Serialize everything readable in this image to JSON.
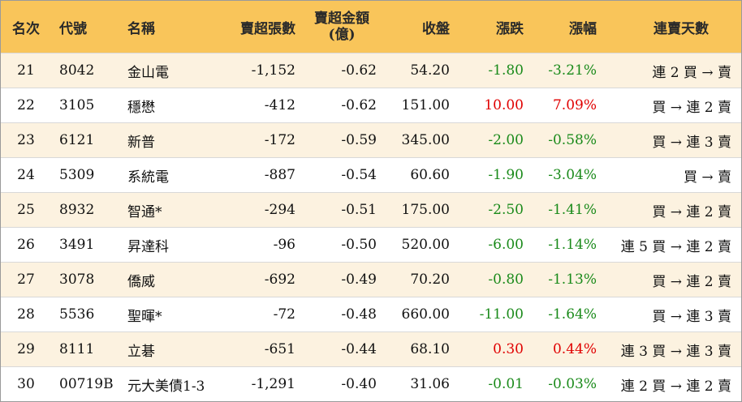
{
  "headers": {
    "rank": "名次",
    "code": "代號",
    "name": "名稱",
    "sell_volume": "賣超張數",
    "sell_amount_line1": "賣超金額",
    "sell_amount_line2": "(億)",
    "close": "收盤",
    "change": "漲跌",
    "pct_change": "漲幅",
    "streak": "連賣天數"
  },
  "colors": {
    "header_bg": "#f9c55a",
    "stripe_bg": "#fcf2e0",
    "up": "#e00000",
    "down": "#1a8a1a"
  },
  "rows": [
    {
      "rank": "21",
      "code": "8042",
      "name": "金山電",
      "vol": "-1,152",
      "amt": "-0.62",
      "close": "54.20",
      "chg": "-1.80",
      "pct": "-3.21%",
      "dir": "down",
      "streak": "連 2 買 → 賣"
    },
    {
      "rank": "22",
      "code": "3105",
      "name": "穩懋",
      "vol": "-412",
      "amt": "-0.62",
      "close": "151.00",
      "chg": "10.00",
      "pct": "7.09%",
      "dir": "up",
      "streak": "買 → 連 2 賣"
    },
    {
      "rank": "23",
      "code": "6121",
      "name": "新普",
      "vol": "-172",
      "amt": "-0.59",
      "close": "345.00",
      "chg": "-2.00",
      "pct": "-0.58%",
      "dir": "down",
      "streak": "買 → 連 3 賣"
    },
    {
      "rank": "24",
      "code": "5309",
      "name": "系統電",
      "vol": "-887",
      "amt": "-0.54",
      "close": "60.60",
      "chg": "-1.90",
      "pct": "-3.04%",
      "dir": "down",
      "streak": "買 → 賣"
    },
    {
      "rank": "25",
      "code": "8932",
      "name": "智通*",
      "vol": "-294",
      "amt": "-0.51",
      "close": "175.00",
      "chg": "-2.50",
      "pct": "-1.41%",
      "dir": "down",
      "streak": "買 → 連 2 賣"
    },
    {
      "rank": "26",
      "code": "3491",
      "name": "昇達科",
      "vol": "-96",
      "amt": "-0.50",
      "close": "520.00",
      "chg": "-6.00",
      "pct": "-1.14%",
      "dir": "down",
      "streak": "連 5 買 → 連 2 賣"
    },
    {
      "rank": "27",
      "code": "3078",
      "name": "僑威",
      "vol": "-692",
      "amt": "-0.49",
      "close": "70.20",
      "chg": "-0.80",
      "pct": "-1.13%",
      "dir": "down",
      "streak": "買 → 連 2 賣"
    },
    {
      "rank": "28",
      "code": "5536",
      "name": "聖暉*",
      "vol": "-72",
      "amt": "-0.48",
      "close": "660.00",
      "chg": "-11.00",
      "pct": "-1.64%",
      "dir": "down",
      "streak": "買 → 連 3 賣"
    },
    {
      "rank": "29",
      "code": "8111",
      "name": "立碁",
      "vol": "-651",
      "amt": "-0.44",
      "close": "68.10",
      "chg": "0.30",
      "pct": "0.44%",
      "dir": "up",
      "streak": "連 3 買 → 連 3 賣"
    },
    {
      "rank": "30",
      "code": "00719B",
      "name": "元大美債1-3",
      "vol": "-1,291",
      "amt": "-0.40",
      "close": "31.06",
      "chg": "-0.01",
      "pct": "-0.03%",
      "dir": "down",
      "streak": "連 2 買 → 連 2 賣"
    }
  ]
}
